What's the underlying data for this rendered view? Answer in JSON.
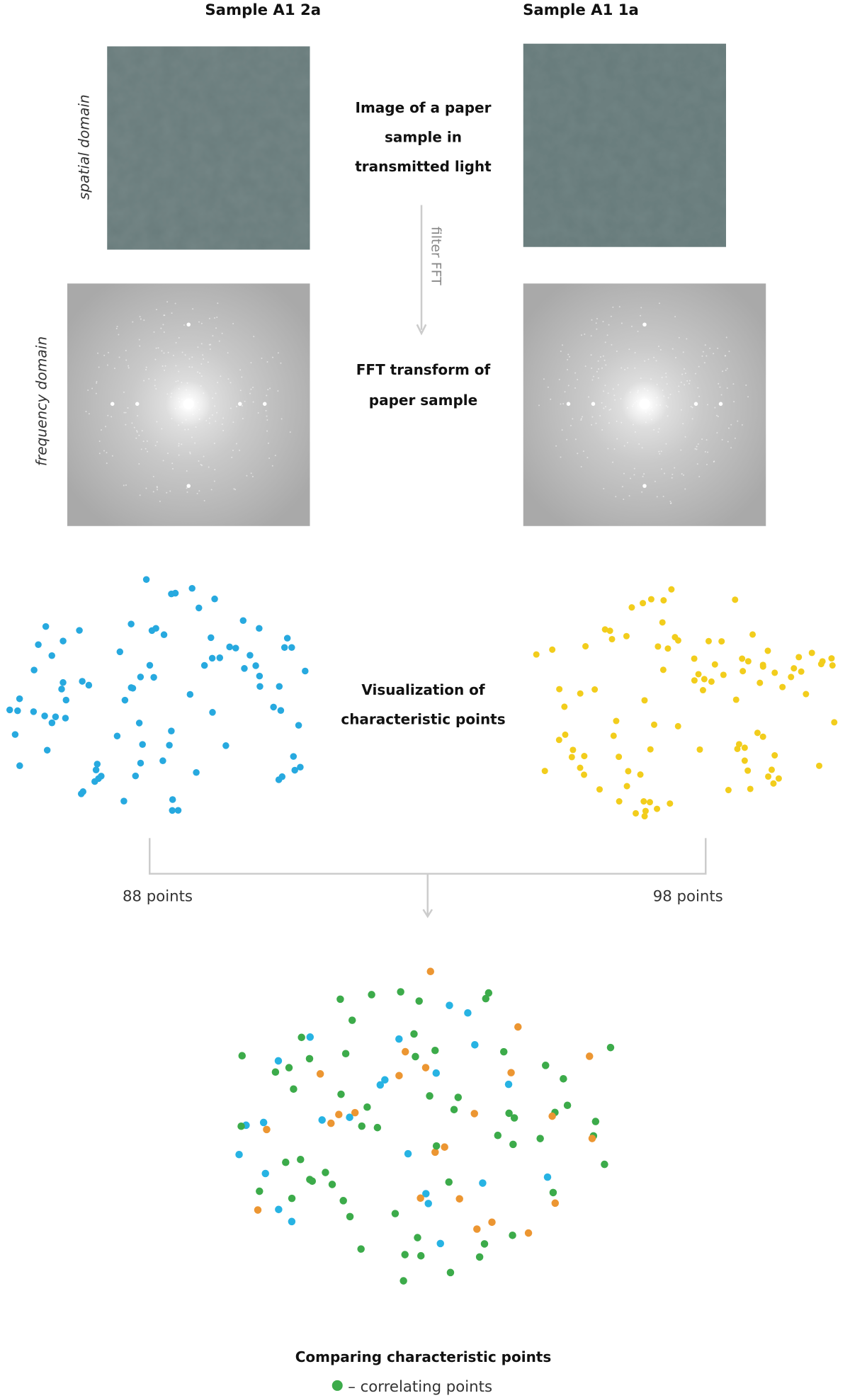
{
  "samples": [
    "Sample A1 2a",
    "Sample A1 1a"
  ],
  "row_labels": {
    "spatial": "spatial domain",
    "frequency": "frequency domain"
  },
  "steps": {
    "image": [
      "Image of a paper",
      "sample in",
      "transmitted light"
    ],
    "filter": "filter FFT",
    "fft": [
      "FFT transform of",
      "paper sample"
    ],
    "points": [
      "Visualization of",
      "characteristic points"
    ]
  },
  "counts": [
    "88 points",
    "98 points"
  ],
  "comparison": {
    "title": "Comparing characteristic points",
    "legend": "– correlating points"
  }
}
